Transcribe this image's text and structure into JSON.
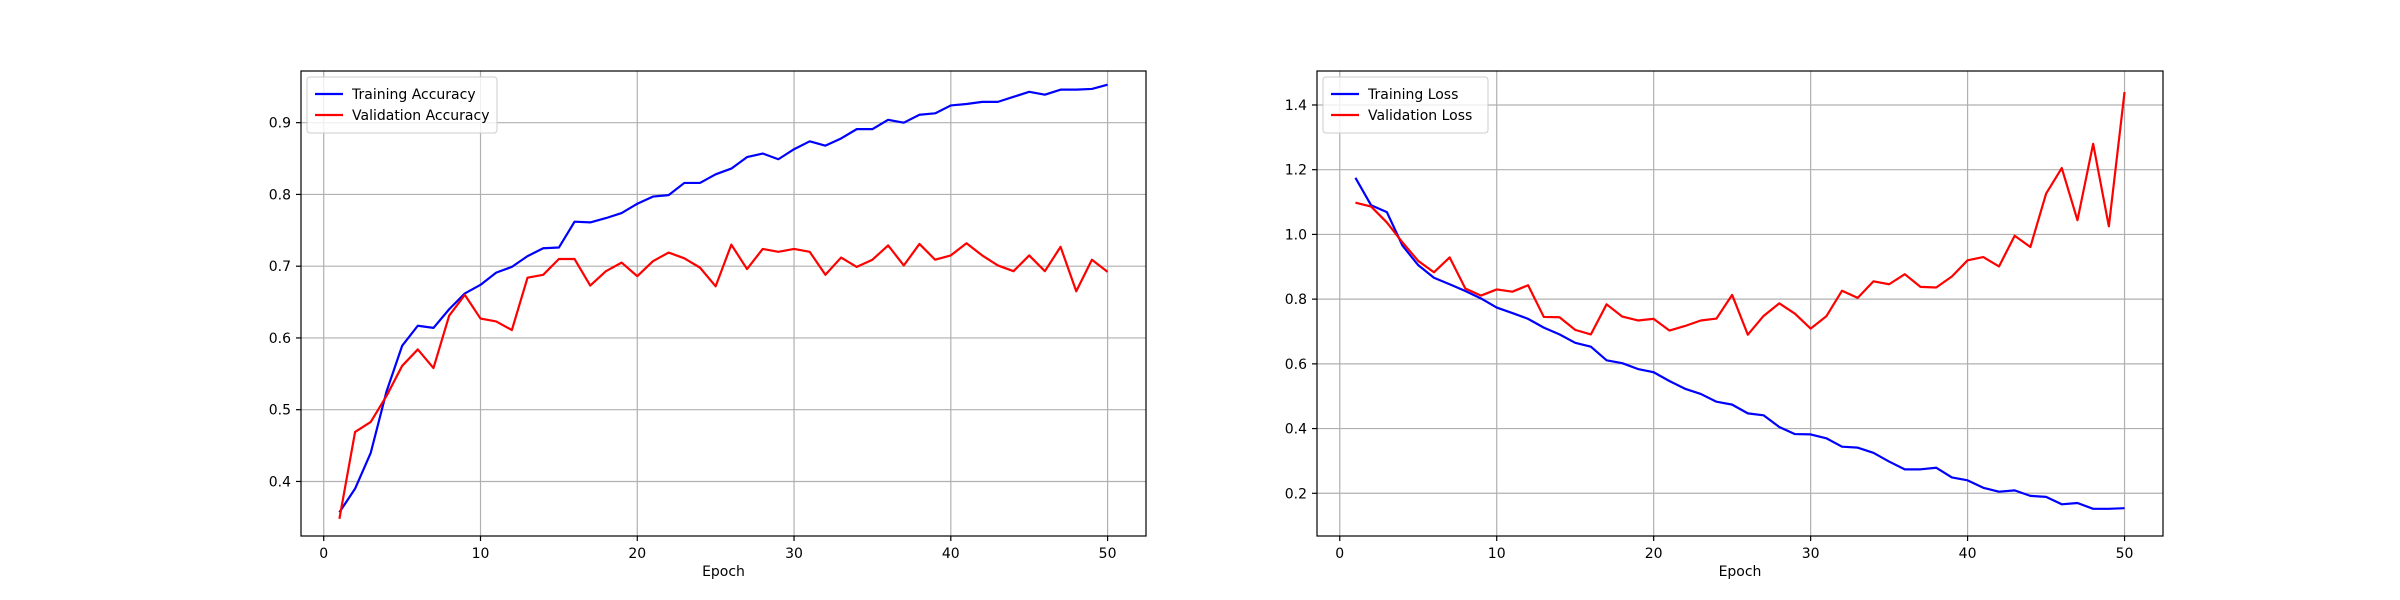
{
  "chart_data": [
    {
      "type": "line",
      "title": "",
      "xlabel": "Epoch",
      "ylabel": "",
      "xlim": [
        -1.45,
        52.45
      ],
      "ylim": [
        0.324,
        0.972
      ],
      "xticks": [
        0,
        10,
        20,
        30,
        40,
        50
      ],
      "yticks": [
        0.4,
        0.5,
        0.6,
        0.7,
        0.8,
        0.9
      ],
      "xtick_labels": [
        "0",
        "10",
        "20",
        "30",
        "40",
        "50"
      ],
      "ytick_labels": [
        "0.4",
        "0.5",
        "0.6",
        "0.7",
        "0.8",
        "0.9"
      ],
      "grid": true,
      "legend_position": "upper-left",
      "x": [
        1,
        2,
        3,
        4,
        5,
        6,
        7,
        8,
        9,
        10,
        11,
        12,
        13,
        14,
        15,
        16,
        17,
        18,
        19,
        20,
        21,
        22,
        23,
        24,
        25,
        26,
        27,
        28,
        29,
        30,
        31,
        32,
        33,
        34,
        35,
        36,
        37,
        38,
        39,
        40,
        41,
        42,
        43,
        44,
        45,
        46,
        47,
        48,
        49,
        50
      ],
      "series": [
        {
          "name": "Training Accuracy",
          "color": "#0000ff",
          "values": [
            0.357,
            0.39,
            0.44,
            0.525,
            0.589,
            0.617,
            0.614,
            0.64,
            0.662,
            0.674,
            0.691,
            0.699,
            0.714,
            0.725,
            0.726,
            0.762,
            0.761,
            0.767,
            0.774,
            0.787,
            0.797,
            0.799,
            0.816,
            0.816,
            0.828,
            0.836,
            0.852,
            0.857,
            0.849,
            0.863,
            0.874,
            0.868,
            0.878,
            0.891,
            0.891,
            0.904,
            0.9,
            0.911,
            0.913,
            0.924,
            0.926,
            0.929,
            0.929,
            0.936,
            0.943,
            0.939,
            0.946,
            0.946,
            0.947,
            0.953
          ]
        },
        {
          "name": "Validation Accuracy",
          "color": "#ff0000",
          "values": [
            0.348,
            0.469,
            0.483,
            0.519,
            0.561,
            0.584,
            0.558,
            0.631,
            0.66,
            0.627,
            0.623,
            0.611,
            0.684,
            0.688,
            0.71,
            0.71,
            0.673,
            0.693,
            0.705,
            0.686,
            0.707,
            0.719,
            0.711,
            0.698,
            0.672,
            0.73,
            0.696,
            0.724,
            0.72,
            0.724,
            0.72,
            0.688,
            0.712,
            0.699,
            0.709,
            0.729,
            0.701,
            0.731,
            0.709,
            0.715,
            0.732,
            0.715,
            0.701,
            0.693,
            0.715,
            0.693,
            0.727,
            0.665,
            0.709,
            0.692
          ]
        }
      ]
    },
    {
      "type": "line",
      "title": "",
      "xlabel": "Epoch",
      "ylabel": "",
      "xlim": [
        -1.45,
        52.45
      ],
      "ylim": [
        0.068,
        1.505
      ],
      "xticks": [
        0,
        10,
        20,
        30,
        40,
        50
      ],
      "yticks": [
        0.2,
        0.4,
        0.6,
        0.8,
        1.0,
        1.2,
        1.4
      ],
      "xtick_labels": [
        "0",
        "10",
        "20",
        "30",
        "40",
        "50"
      ],
      "ytick_labels": [
        "0.2",
        "0.4",
        "0.6",
        "0.8",
        "1.0",
        "1.2",
        "1.4"
      ],
      "grid": true,
      "legend_position": "upper-left",
      "x": [
        1,
        2,
        3,
        4,
        5,
        6,
        7,
        8,
        9,
        10,
        11,
        12,
        13,
        14,
        15,
        16,
        17,
        18,
        19,
        20,
        21,
        22,
        23,
        24,
        25,
        26,
        27,
        28,
        29,
        30,
        31,
        32,
        33,
        34,
        35,
        36,
        37,
        38,
        39,
        40,
        41,
        42,
        43,
        44,
        45,
        46,
        47,
        48,
        49,
        50
      ],
      "series": [
        {
          "name": "Training Loss",
          "color": "#0000ff",
          "values": [
            1.175,
            1.09,
            1.069,
            0.965,
            0.905,
            0.866,
            0.846,
            0.825,
            0.802,
            0.774,
            0.757,
            0.739,
            0.712,
            0.691,
            0.665,
            0.653,
            0.611,
            0.602,
            0.584,
            0.574,
            0.547,
            0.523,
            0.507,
            0.483,
            0.474,
            0.447,
            0.441,
            0.405,
            0.383,
            0.382,
            0.37,
            0.344,
            0.341,
            0.325,
            0.298,
            0.274,
            0.274,
            0.279,
            0.249,
            0.24,
            0.217,
            0.205,
            0.209,
            0.192,
            0.189,
            0.166,
            0.17,
            0.152,
            0.152,
            0.154
          ]
        },
        {
          "name": "Validation Loss",
          "color": "#ff0000",
          "values": [
            1.098,
            1.086,
            1.037,
            0.975,
            0.918,
            0.883,
            0.929,
            0.833,
            0.811,
            0.83,
            0.823,
            0.843,
            0.745,
            0.744,
            0.705,
            0.691,
            0.784,
            0.746,
            0.734,
            0.739,
            0.703,
            0.717,
            0.734,
            0.74,
            0.813,
            0.69,
            0.748,
            0.787,
            0.755,
            0.709,
            0.747,
            0.826,
            0.804,
            0.855,
            0.846,
            0.877,
            0.838,
            0.836,
            0.87,
            0.92,
            0.93,
            0.901,
            0.996,
            0.961,
            1.126,
            1.205,
            1.044,
            1.28,
            1.025,
            1.44
          ]
        }
      ]
    }
  ]
}
